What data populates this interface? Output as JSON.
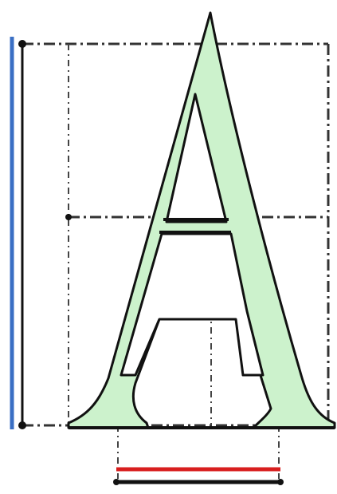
{
  "figure": {
    "glyph": "A",
    "colors": {
      "glyph_fill": "#ccf2cc",
      "outline": "#111111",
      "height_bar": "#3a6fc4",
      "width_bar": "#d81e1e",
      "construction_lines": "#333333",
      "background": "#ffffff"
    },
    "line_style": "dash-dot"
  }
}
